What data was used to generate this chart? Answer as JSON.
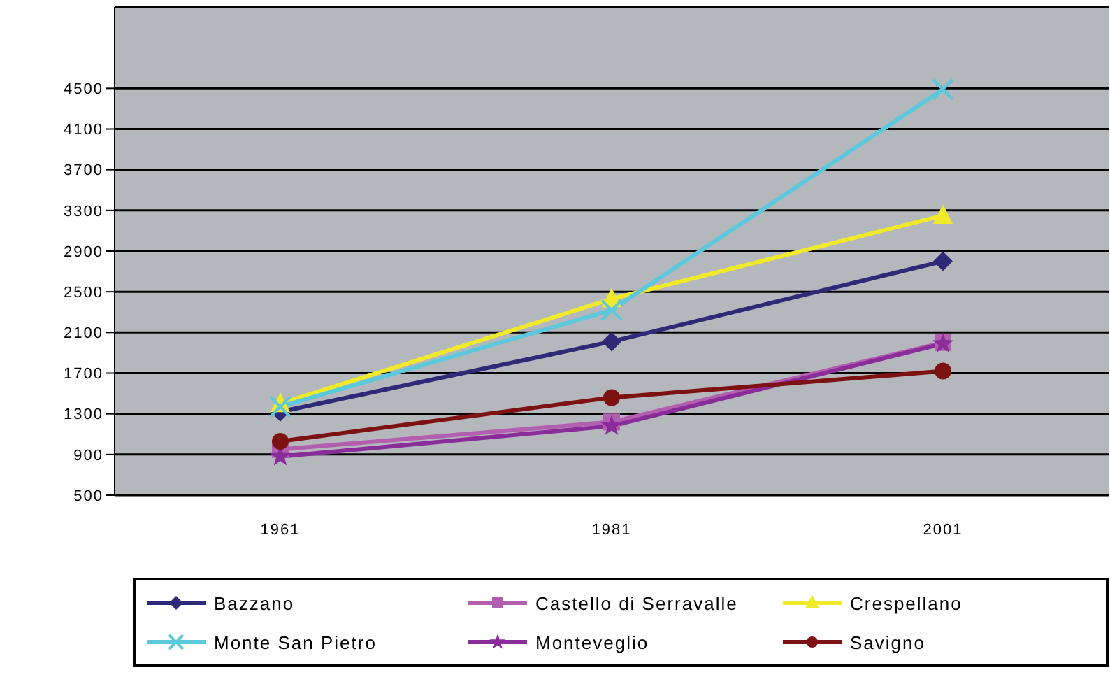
{
  "chart_data": {
    "type": "line",
    "categories": [
      "1961",
      "1981",
      "2001"
    ],
    "series": [
      {
        "name": "Bazzano",
        "color": "#2e2a78",
        "marker": "diamond",
        "values": [
          1320,
          2010,
          2800
        ]
      },
      {
        "name": "Castello di Serravalle",
        "color": "#b35fb0",
        "marker": "square",
        "values": [
          950,
          1220,
          2000
        ]
      },
      {
        "name": "Crespellano",
        "color": "#f0ea2a",
        "marker": "triangle",
        "values": [
          1400,
          2430,
          3250
        ]
      },
      {
        "name": "Monte San Pietro",
        "color": "#5bc8dc",
        "marker": "cross",
        "values": [
          1370,
          2320,
          4490
        ]
      },
      {
        "name": "Monteveglio",
        "color": "#8a2d9a",
        "marker": "star",
        "values": [
          880,
          1180,
          1990
        ]
      },
      {
        "name": "Savigno",
        "color": "#7d1212",
        "marker": "circle",
        "values": [
          1030,
          1460,
          1720
        ]
      }
    ],
    "ylim": [
      500,
      5300
    ],
    "yticks": [
      500,
      900,
      1300,
      1700,
      2100,
      2500,
      2900,
      3300,
      3700,
      4100,
      4500
    ],
    "grid": "y",
    "legend": "bottom"
  }
}
